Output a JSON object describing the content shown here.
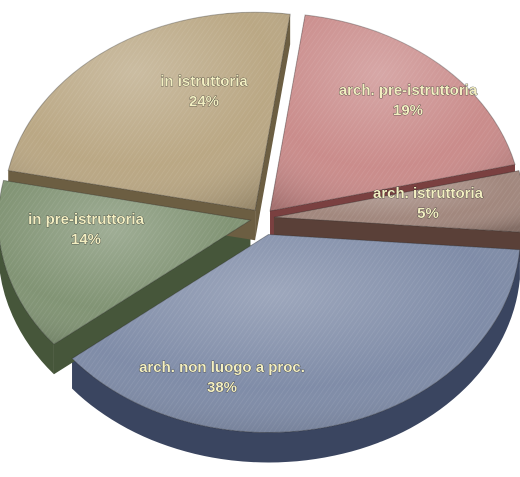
{
  "chart_data": {
    "type": "pie",
    "slices": [
      {
        "label": "arch. pre-istruttoria",
        "pct_text": "19%",
        "value": 19,
        "color": "#c98a89",
        "side_color": "#7a4040"
      },
      {
        "label": "arch. istruttoria",
        "pct_text": "5%",
        "value": 5,
        "color": "#a0857b",
        "side_color": "#5a4038"
      },
      {
        "label": "arch. non luogo a proc.",
        "pct_text": "38%",
        "value": 38,
        "color": "#7d8aa6",
        "side_color": "#3a4560"
      },
      {
        "label": "in pre-istruttoria",
        "pct_text": "14%",
        "value": 14,
        "color": "#7f9272",
        "side_color": "#46563a"
      },
      {
        "label": "in istruttoria",
        "pct_text": "24%",
        "value": 24,
        "color": "#b9a682",
        "side_color": "#6c5e42"
      }
    ]
  }
}
